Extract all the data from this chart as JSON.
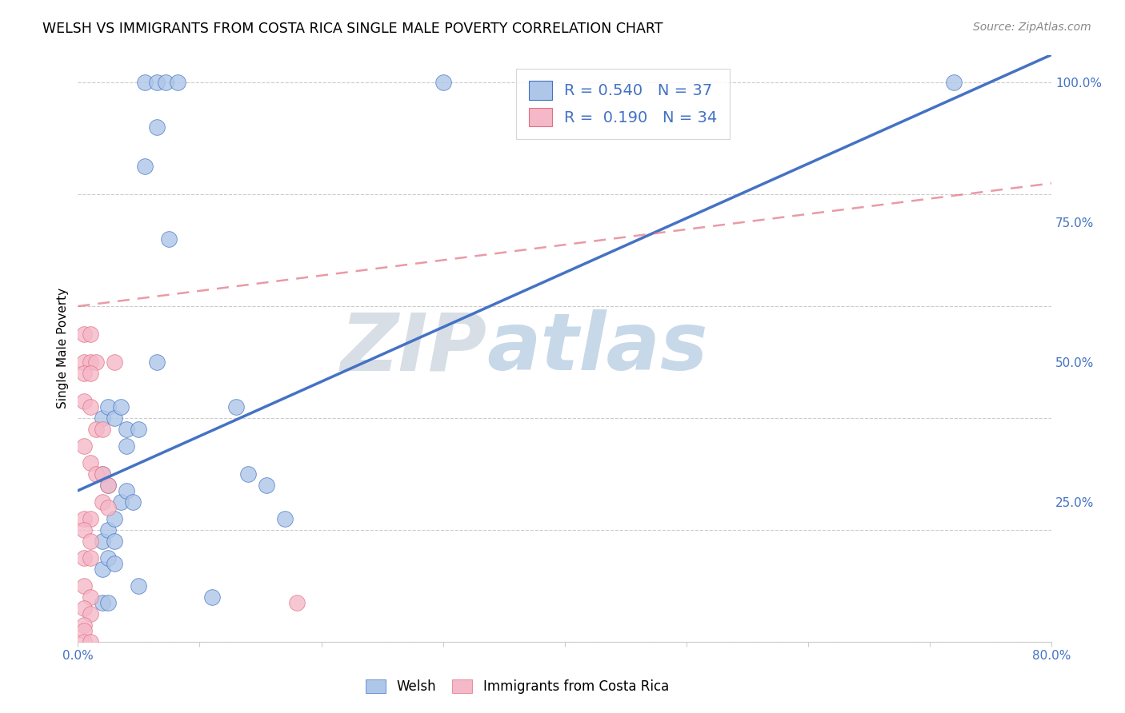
{
  "title": "WELSH VS IMMIGRANTS FROM COSTA RICA SINGLE MALE POVERTY CORRELATION CHART",
  "source": "Source: ZipAtlas.com",
  "ylabel": "Single Male Poverty",
  "xlim": [
    0.0,
    0.8
  ],
  "ylim": [
    0.0,
    1.05
  ],
  "xticks": [
    0.0,
    0.1,
    0.2,
    0.3,
    0.4,
    0.5,
    0.6,
    0.7,
    0.8
  ],
  "xticklabels": [
    "0.0%",
    "",
    "",
    "",
    "",
    "",
    "",
    "",
    "80.0%"
  ],
  "ytick_positions": [
    0.0,
    0.25,
    0.5,
    0.75,
    1.0
  ],
  "yticklabels": [
    "",
    "25.0%",
    "50.0%",
    "75.0%",
    "100.0%"
  ],
  "legend_r1": "0.540",
  "legend_n1": "37",
  "legend_r2": "0.190",
  "legend_n2": "34",
  "welsh_color": "#aec6e8",
  "immigrant_color": "#f5b8c8",
  "welsh_line_color": "#4472c4",
  "immigrant_line_color": "#e07080",
  "grid_color": "#cccccc",
  "watermark_zip": "ZIP",
  "watermark_atlas": "atlas",
  "watermark_color_zip": "#c8d0dc",
  "watermark_color_atlas": "#7aa8d8",
  "welsh_line_x0": 0.0,
  "welsh_line_y0": 0.27,
  "welsh_line_x1": 0.8,
  "welsh_line_y1": 1.05,
  "imm_line_x0": 0.0,
  "imm_line_y0": 0.6,
  "imm_line_x1": 0.8,
  "imm_line_y1": 0.82,
  "welsh_scatter": [
    [
      0.055,
      1.0
    ],
    [
      0.065,
      1.0
    ],
    [
      0.072,
      1.0
    ],
    [
      0.082,
      1.0
    ],
    [
      0.065,
      0.92
    ],
    [
      0.3,
      1.0
    ],
    [
      0.72,
      1.0
    ],
    [
      0.055,
      0.85
    ],
    [
      0.075,
      0.72
    ],
    [
      0.065,
      0.5
    ],
    [
      0.02,
      0.4
    ],
    [
      0.025,
      0.42
    ],
    [
      0.03,
      0.4
    ],
    [
      0.035,
      0.42
    ],
    [
      0.04,
      0.38
    ],
    [
      0.04,
      0.35
    ],
    [
      0.05,
      0.38
    ],
    [
      0.13,
      0.42
    ],
    [
      0.14,
      0.3
    ],
    [
      0.02,
      0.3
    ],
    [
      0.025,
      0.28
    ],
    [
      0.155,
      0.28
    ],
    [
      0.17,
      0.22
    ],
    [
      0.02,
      0.18
    ],
    [
      0.025,
      0.2
    ],
    [
      0.03,
      0.22
    ],
    [
      0.03,
      0.18
    ],
    [
      0.035,
      0.25
    ],
    [
      0.04,
      0.27
    ],
    [
      0.045,
      0.25
    ],
    [
      0.02,
      0.13
    ],
    [
      0.025,
      0.15
    ],
    [
      0.03,
      0.14
    ],
    [
      0.05,
      0.1
    ],
    [
      0.11,
      0.08
    ],
    [
      0.02,
      0.07
    ],
    [
      0.025,
      0.07
    ]
  ],
  "immigrant_scatter": [
    [
      0.005,
      0.5
    ],
    [
      0.01,
      0.5
    ],
    [
      0.015,
      0.5
    ],
    [
      0.005,
      0.48
    ],
    [
      0.01,
      0.48
    ],
    [
      0.03,
      0.5
    ],
    [
      0.005,
      0.43
    ],
    [
      0.01,
      0.42
    ],
    [
      0.015,
      0.38
    ],
    [
      0.02,
      0.38
    ],
    [
      0.005,
      0.35
    ],
    [
      0.01,
      0.32
    ],
    [
      0.015,
      0.3
    ],
    [
      0.02,
      0.3
    ],
    [
      0.025,
      0.28
    ],
    [
      0.02,
      0.25
    ],
    [
      0.025,
      0.24
    ],
    [
      0.005,
      0.22
    ],
    [
      0.01,
      0.22
    ],
    [
      0.005,
      0.2
    ],
    [
      0.01,
      0.18
    ],
    [
      0.005,
      0.15
    ],
    [
      0.01,
      0.15
    ],
    [
      0.005,
      0.1
    ],
    [
      0.01,
      0.08
    ],
    [
      0.005,
      0.06
    ],
    [
      0.01,
      0.05
    ],
    [
      0.005,
      0.03
    ],
    [
      0.005,
      0.02
    ],
    [
      0.005,
      0.0
    ],
    [
      0.01,
      0.0
    ],
    [
      0.18,
      0.07
    ],
    [
      0.005,
      0.55
    ],
    [
      0.01,
      0.55
    ]
  ]
}
